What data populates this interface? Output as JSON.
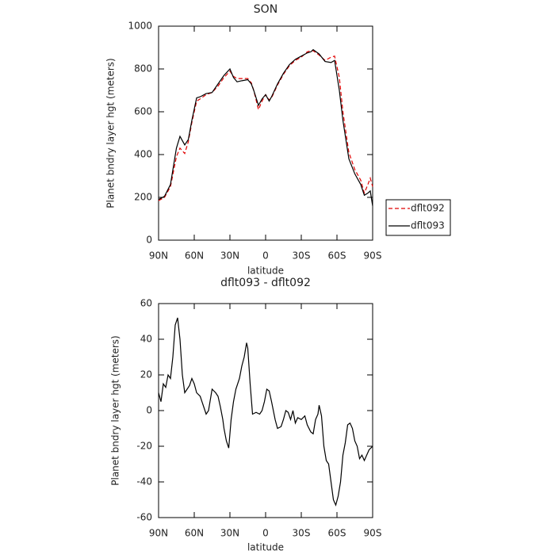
{
  "chart_data": [
    {
      "type": "line",
      "title": "SON",
      "xlabel": "latitude",
      "ylabel": "Planet bndry layer hgt (meters)",
      "xlim": [
        90,
        -90
      ],
      "xticks": [
        {
          "value": 90,
          "label": "90N"
        },
        {
          "value": 60,
          "label": "60N"
        },
        {
          "value": 30,
          "label": "30N"
        },
        0,
        {
          "value": -30,
          "label": "30S"
        },
        {
          "value": -60,
          "label": "60S"
        },
        {
          "value": -90,
          "label": "90S"
        }
      ],
      "ylim": [
        0,
        1000
      ],
      "yticks": [
        0,
        200,
        400,
        600,
        800,
        1000
      ],
      "legend": "right",
      "x": [
        90,
        85,
        80,
        75,
        72,
        68,
        65,
        62,
        58,
        55,
        50,
        45,
        40,
        35,
        30,
        27,
        24,
        20,
        15,
        12,
        10,
        6,
        3,
        0,
        -3,
        -5,
        -10,
        -15,
        -20,
        -25,
        -30,
        -35,
        -38,
        -40,
        -45,
        -50,
        -55,
        -58,
        -62,
        -65,
        -70,
        -75,
        -80,
        -83,
        -86,
        -88,
        -90
      ],
      "series": [
        {
          "name": "dflt092",
          "color": "#e00000",
          "dash": true,
          "values": [
            185,
            200,
            250,
            390,
            430,
            405,
            460,
            550,
            650,
            660,
            680,
            690,
            720,
            760,
            790,
            765,
            755,
            755,
            755,
            735,
            700,
            610,
            650,
            680,
            655,
            665,
            725,
            775,
            815,
            840,
            855,
            880,
            885,
            885,
            865,
            840,
            855,
            860,
            760,
            600,
            410,
            330,
            280,
            220,
            260,
            290,
            250
          ]
        },
        {
          "name": "dflt093",
          "color": "#000000",
          "dash": false,
          "values": [
            190,
            205,
            260,
            430,
            485,
            445,
            470,
            560,
            665,
            670,
            685,
            690,
            730,
            770,
            800,
            760,
            740,
            745,
            750,
            730,
            700,
            630,
            660,
            680,
            650,
            670,
            730,
            780,
            820,
            845,
            860,
            875,
            880,
            890,
            870,
            835,
            830,
            840,
            700,
            560,
            380,
            310,
            260,
            210,
            220,
            230,
            160
          ]
        }
      ]
    },
    {
      "type": "line",
      "title": "dflt093 - dflt092",
      "xlabel": "latitude",
      "ylabel": "Planet bndry layer hgt (meters)",
      "xlim": [
        90,
        -90
      ],
      "xticks": [
        {
          "value": 90,
          "label": "90N"
        },
        {
          "value": 60,
          "label": "60N"
        },
        {
          "value": 30,
          "label": "30N"
        },
        0,
        {
          "value": -30,
          "label": "30S"
        },
        {
          "value": -60,
          "label": "60S"
        },
        {
          "value": -90,
          "label": "90S"
        }
      ],
      "ylim": [
        -60,
        60
      ],
      "yticks": [
        -60,
        -40,
        -20,
        0,
        20,
        40,
        60
      ],
      "x": [
        90,
        88,
        86,
        84,
        82,
        80,
        78,
        76,
        74,
        72,
        70,
        68,
        66,
        64,
        62,
        60,
        58,
        55,
        52,
        50,
        48,
        45,
        42,
        40,
        38,
        36,
        35,
        33,
        31,
        29,
        27,
        25,
        22,
        20,
        18,
        16,
        15,
        13,
        11,
        8,
        5,
        3,
        1,
        -1,
        -3,
        -5,
        -8,
        -10,
        -13,
        -15,
        -17,
        -19,
        -21,
        -23,
        -25,
        -27,
        -30,
        -33,
        -35,
        -38,
        -40,
        -42,
        -44,
        -45,
        -47,
        -49,
        -51,
        -53,
        -55,
        -57,
        -59,
        -61,
        -63,
        -65,
        -67,
        -69,
        -71,
        -73,
        -75,
        -77,
        -79,
        -81,
        -83,
        -85,
        -87,
        -90
      ],
      "series": [
        {
          "color": "#000000",
          "values": [
            10,
            5,
            15,
            13,
            20,
            18,
            30,
            48,
            52,
            40,
            20,
            10,
            12,
            14,
            18,
            15,
            10,
            8,
            2,
            -2,
            0,
            12,
            10,
            8,
            2,
            -5,
            -10,
            -17,
            -21,
            -5,
            5,
            12,
            18,
            25,
            30,
            38,
            35,
            15,
            -2,
            -1,
            -2,
            0,
            5,
            12,
            11,
            5,
            -5,
            -10,
            -9,
            -5,
            0,
            -1,
            -5,
            0,
            -7,
            -4,
            -5,
            -3,
            -8,
            -12,
            -13,
            -5,
            -2,
            3,
            -3,
            -20,
            -28,
            -30,
            -40,
            -50,
            -53,
            -48,
            -40,
            -25,
            -18,
            -8,
            -7,
            -10,
            -17,
            -20,
            -27,
            -25,
            -28,
            -25,
            -22,
            -20
          ]
        }
      ]
    }
  ]
}
